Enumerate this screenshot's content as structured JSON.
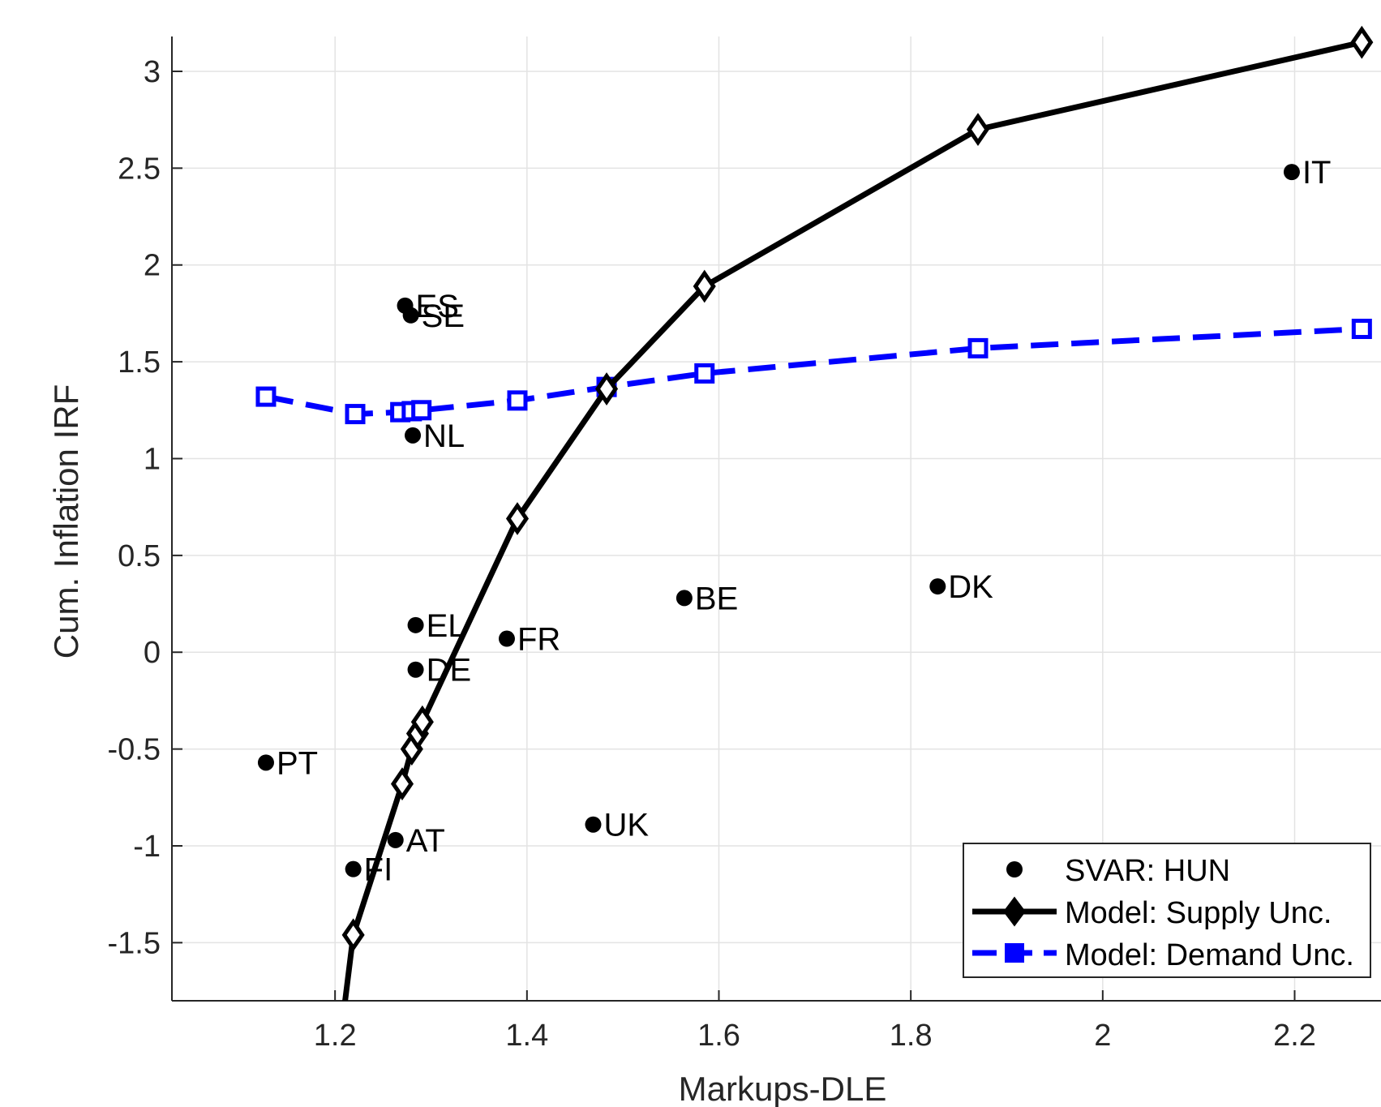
{
  "chart_data": {
    "type": "line",
    "xlabel": "Markups-DLE",
    "ylabel": "Cum. Inflation IRF",
    "xlim": [
      1.03,
      2.29
    ],
    "ylim": [
      -1.8,
      3.18
    ],
    "xticks": [
      1.2,
      1.4,
      1.6,
      1.8,
      2,
      2.2
    ],
    "xtick_labels": [
      "1.2",
      "1.4",
      "1.6",
      "1.8",
      "2",
      "2.2"
    ],
    "yticks": [
      -1.5,
      -1,
      -0.5,
      0,
      0.5,
      1,
      1.5,
      2,
      2.5,
      3
    ],
    "ytick_labels": [
      "-1.5",
      "-1",
      "-0.5",
      "0",
      "0.5",
      "1",
      "1.5",
      "2",
      "2.5",
      "3"
    ],
    "grid": true,
    "legend_position": "bottom-right",
    "series": [
      {
        "name": "SVAR: HUN",
        "kind": "scatter",
        "color": "#000000",
        "points": [
          {
            "label": "IT",
            "x": 2.197,
            "y": 2.48
          },
          {
            "label": "ES",
            "x": 1.273,
            "y": 1.79
          },
          {
            "label": "SE",
            "x": 1.279,
            "y": 1.74
          },
          {
            "label": "NL",
            "x": 1.281,
            "y": 1.12
          },
          {
            "label": "DK",
            "x": 1.828,
            "y": 0.34
          },
          {
            "label": "BE",
            "x": 1.564,
            "y": 0.28
          },
          {
            "label": "EL",
            "x": 1.284,
            "y": 0.14
          },
          {
            "label": "FR",
            "x": 1.379,
            "y": 0.07
          },
          {
            "label": "DE",
            "x": 1.284,
            "y": -0.09
          },
          {
            "label": "PT",
            "x": 1.128,
            "y": -0.57
          },
          {
            "label": "UK",
            "x": 1.469,
            "y": -0.89
          },
          {
            "label": "AT",
            "x": 1.263,
            "y": -0.97
          },
          {
            "label": "FI",
            "x": 1.219,
            "y": -1.12
          }
        ]
      },
      {
        "name": "Model: Supply Unc.",
        "kind": "line",
        "color": "#000000",
        "marker": "diamond",
        "x": [
          1.21,
          1.219,
          1.27,
          1.28,
          1.286,
          1.291,
          1.483,
          1.39,
          1.585,
          1.87,
          2.27
        ],
        "y": [
          -1.82,
          -1.46,
          -0.68,
          -0.5,
          -0.42,
          -0.36,
          1.36,
          0.69,
          1.89,
          2.7,
          3.15
        ],
        "order": [
          0,
          1,
          2,
          3,
          4,
          5,
          7,
          6,
          8,
          9,
          10
        ],
        "marker_indices": [
          1,
          2,
          3,
          4,
          5,
          6,
          7,
          8,
          9,
          10
        ]
      },
      {
        "name": "Model: Demand Unc.",
        "kind": "line",
        "color": "#0000ff",
        "marker": "square",
        "dashed": true,
        "x": [
          1.128,
          1.221,
          1.268,
          1.28,
          1.29,
          1.39,
          1.483,
          1.585,
          1.87,
          2.27
        ],
        "y": [
          1.32,
          1.23,
          1.24,
          1.245,
          1.25,
          1.3,
          1.37,
          1.44,
          1.57,
          1.67
        ]
      }
    ]
  }
}
